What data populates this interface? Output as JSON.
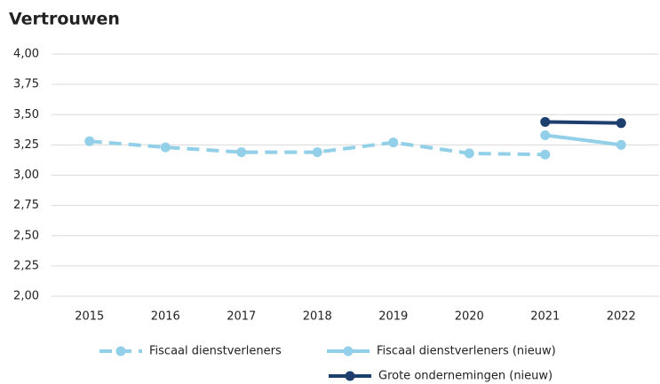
{
  "chart_data": {
    "type": "line",
    "title": "Vertrouwen",
    "categories": [
      "2015",
      "2016",
      "2017",
      "2018",
      "2019",
      "2020",
      "2021",
      "2022"
    ],
    "series": [
      {
        "name": "Fiscaal dienstverleners",
        "color": "#92cfe8",
        "style": "dashed",
        "values": [
          3.28,
          3.23,
          3.19,
          3.19,
          3.27,
          3.18,
          3.17,
          null
        ]
      },
      {
        "name": "Fiscaal dienstverleners (nieuw)",
        "color": "#92cfe8",
        "style": "solid",
        "values": [
          null,
          null,
          null,
          null,
          null,
          null,
          3.33,
          3.25
        ]
      },
      {
        "name": "Grote ondernemingen (nieuw)",
        "color": "#1d3f6e",
        "style": "solid",
        "values": [
          null,
          null,
          null,
          null,
          null,
          null,
          3.44,
          3.43
        ]
      }
    ],
    "ylim": [
      2,
      4
    ],
    "yticks": [
      {
        "value": 2,
        "label": "2,00"
      },
      {
        "value": 2.25,
        "label": "2,25"
      },
      {
        "value": 2.5,
        "label": "2,50"
      },
      {
        "value": 2.75,
        "label": "2,75"
      },
      {
        "value": 3,
        "label": "3,00"
      },
      {
        "value": 3.25,
        "label": "3,25"
      },
      {
        "value": 3.5,
        "label": "3,50"
      },
      {
        "value": 3.75,
        "label": "3,75"
      },
      {
        "value": 4,
        "label": "4,00"
      }
    ],
    "grid": true,
    "legend": "bottom"
  }
}
